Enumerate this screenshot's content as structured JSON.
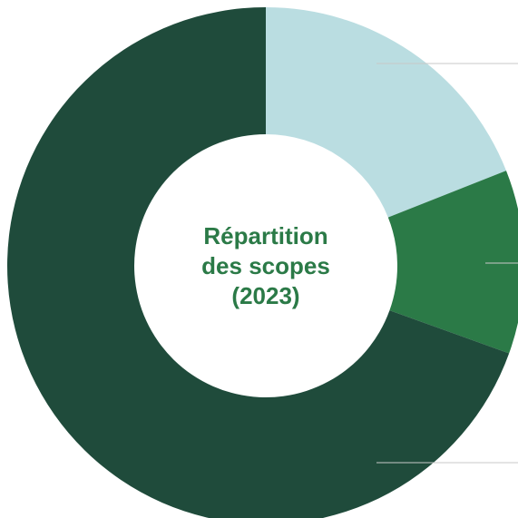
{
  "chart_data": {
    "type": "donut",
    "title_lines": [
      "Répartition",
      "des scopes",
      "(2023)"
    ],
    "slices": [
      {
        "value": 19.0,
        "color": "#badde1"
      },
      {
        "value": 11.5,
        "color": "#2b7a47"
      },
      {
        "value": 69.5,
        "color": "#1f4b3b"
      }
    ],
    "leader_line_color": "#c8c8c8"
  }
}
